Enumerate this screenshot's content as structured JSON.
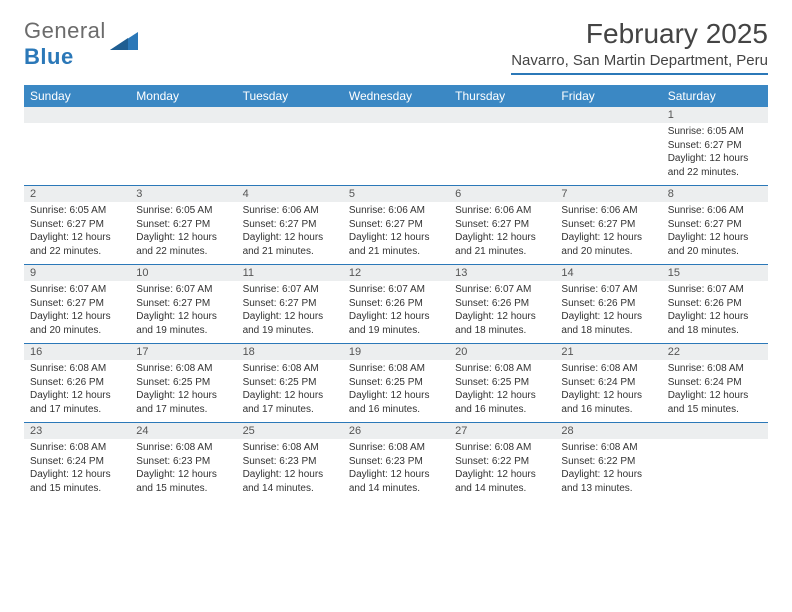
{
  "logo": {
    "word1": "General",
    "word2": "Blue",
    "word1_color": "#6b6b6b",
    "word2_color": "#2b78b8",
    "sail_color": "#2b78b8"
  },
  "header": {
    "month_title": "February 2025",
    "location": "Navarro, San Martin Department, Peru"
  },
  "styling": {
    "page_bg": "#ffffff",
    "header_rule_color": "#2b78b8",
    "day_header_bg": "#3b88c4",
    "day_header_text": "#ffffff",
    "daynum_bg": "#eceeef",
    "week_divider_color": "#2b78b8",
    "body_text_color": "#333333",
    "title_fontsize_pt": 21,
    "location_fontsize_pt": 11,
    "dayheader_fontsize_pt": 9,
    "daynum_fontsize_pt": 8,
    "cell_fontsize_pt": 7.5,
    "columns": 7
  },
  "day_names": [
    "Sunday",
    "Monday",
    "Tuesday",
    "Wednesday",
    "Thursday",
    "Friday",
    "Saturday"
  ],
  "weeks": [
    {
      "nums": [
        "",
        "",
        "",
        "",
        "",
        "",
        "1"
      ],
      "cells": [
        null,
        null,
        null,
        null,
        null,
        null,
        {
          "sunrise": "Sunrise: 6:05 AM",
          "sunset": "Sunset: 6:27 PM",
          "day1": "Daylight: 12 hours",
          "day2": "and 22 minutes."
        }
      ]
    },
    {
      "nums": [
        "2",
        "3",
        "4",
        "5",
        "6",
        "7",
        "8"
      ],
      "cells": [
        {
          "sunrise": "Sunrise: 6:05 AM",
          "sunset": "Sunset: 6:27 PM",
          "day1": "Daylight: 12 hours",
          "day2": "and 22 minutes."
        },
        {
          "sunrise": "Sunrise: 6:05 AM",
          "sunset": "Sunset: 6:27 PM",
          "day1": "Daylight: 12 hours",
          "day2": "and 22 minutes."
        },
        {
          "sunrise": "Sunrise: 6:06 AM",
          "sunset": "Sunset: 6:27 PM",
          "day1": "Daylight: 12 hours",
          "day2": "and 21 minutes."
        },
        {
          "sunrise": "Sunrise: 6:06 AM",
          "sunset": "Sunset: 6:27 PM",
          "day1": "Daylight: 12 hours",
          "day2": "and 21 minutes."
        },
        {
          "sunrise": "Sunrise: 6:06 AM",
          "sunset": "Sunset: 6:27 PM",
          "day1": "Daylight: 12 hours",
          "day2": "and 21 minutes."
        },
        {
          "sunrise": "Sunrise: 6:06 AM",
          "sunset": "Sunset: 6:27 PM",
          "day1": "Daylight: 12 hours",
          "day2": "and 20 minutes."
        },
        {
          "sunrise": "Sunrise: 6:06 AM",
          "sunset": "Sunset: 6:27 PM",
          "day1": "Daylight: 12 hours",
          "day2": "and 20 minutes."
        }
      ]
    },
    {
      "nums": [
        "9",
        "10",
        "11",
        "12",
        "13",
        "14",
        "15"
      ],
      "cells": [
        {
          "sunrise": "Sunrise: 6:07 AM",
          "sunset": "Sunset: 6:27 PM",
          "day1": "Daylight: 12 hours",
          "day2": "and 20 minutes."
        },
        {
          "sunrise": "Sunrise: 6:07 AM",
          "sunset": "Sunset: 6:27 PM",
          "day1": "Daylight: 12 hours",
          "day2": "and 19 minutes."
        },
        {
          "sunrise": "Sunrise: 6:07 AM",
          "sunset": "Sunset: 6:27 PM",
          "day1": "Daylight: 12 hours",
          "day2": "and 19 minutes."
        },
        {
          "sunrise": "Sunrise: 6:07 AM",
          "sunset": "Sunset: 6:26 PM",
          "day1": "Daylight: 12 hours",
          "day2": "and 19 minutes."
        },
        {
          "sunrise": "Sunrise: 6:07 AM",
          "sunset": "Sunset: 6:26 PM",
          "day1": "Daylight: 12 hours",
          "day2": "and 18 minutes."
        },
        {
          "sunrise": "Sunrise: 6:07 AM",
          "sunset": "Sunset: 6:26 PM",
          "day1": "Daylight: 12 hours",
          "day2": "and 18 minutes."
        },
        {
          "sunrise": "Sunrise: 6:07 AM",
          "sunset": "Sunset: 6:26 PM",
          "day1": "Daylight: 12 hours",
          "day2": "and 18 minutes."
        }
      ]
    },
    {
      "nums": [
        "16",
        "17",
        "18",
        "19",
        "20",
        "21",
        "22"
      ],
      "cells": [
        {
          "sunrise": "Sunrise: 6:08 AM",
          "sunset": "Sunset: 6:26 PM",
          "day1": "Daylight: 12 hours",
          "day2": "and 17 minutes."
        },
        {
          "sunrise": "Sunrise: 6:08 AM",
          "sunset": "Sunset: 6:25 PM",
          "day1": "Daylight: 12 hours",
          "day2": "and 17 minutes."
        },
        {
          "sunrise": "Sunrise: 6:08 AM",
          "sunset": "Sunset: 6:25 PM",
          "day1": "Daylight: 12 hours",
          "day2": "and 17 minutes."
        },
        {
          "sunrise": "Sunrise: 6:08 AM",
          "sunset": "Sunset: 6:25 PM",
          "day1": "Daylight: 12 hours",
          "day2": "and 16 minutes."
        },
        {
          "sunrise": "Sunrise: 6:08 AM",
          "sunset": "Sunset: 6:25 PM",
          "day1": "Daylight: 12 hours",
          "day2": "and 16 minutes."
        },
        {
          "sunrise": "Sunrise: 6:08 AM",
          "sunset": "Sunset: 6:24 PM",
          "day1": "Daylight: 12 hours",
          "day2": "and 16 minutes."
        },
        {
          "sunrise": "Sunrise: 6:08 AM",
          "sunset": "Sunset: 6:24 PM",
          "day1": "Daylight: 12 hours",
          "day2": "and 15 minutes."
        }
      ]
    },
    {
      "nums": [
        "23",
        "24",
        "25",
        "26",
        "27",
        "28",
        ""
      ],
      "cells": [
        {
          "sunrise": "Sunrise: 6:08 AM",
          "sunset": "Sunset: 6:24 PM",
          "day1": "Daylight: 12 hours",
          "day2": "and 15 minutes."
        },
        {
          "sunrise": "Sunrise: 6:08 AM",
          "sunset": "Sunset: 6:23 PM",
          "day1": "Daylight: 12 hours",
          "day2": "and 15 minutes."
        },
        {
          "sunrise": "Sunrise: 6:08 AM",
          "sunset": "Sunset: 6:23 PM",
          "day1": "Daylight: 12 hours",
          "day2": "and 14 minutes."
        },
        {
          "sunrise": "Sunrise: 6:08 AM",
          "sunset": "Sunset: 6:23 PM",
          "day1": "Daylight: 12 hours",
          "day2": "and 14 minutes."
        },
        {
          "sunrise": "Sunrise: 6:08 AM",
          "sunset": "Sunset: 6:22 PM",
          "day1": "Daylight: 12 hours",
          "day2": "and 14 minutes."
        },
        {
          "sunrise": "Sunrise: 6:08 AM",
          "sunset": "Sunset: 6:22 PM",
          "day1": "Daylight: 12 hours",
          "day2": "and 13 minutes."
        },
        null
      ]
    }
  ]
}
